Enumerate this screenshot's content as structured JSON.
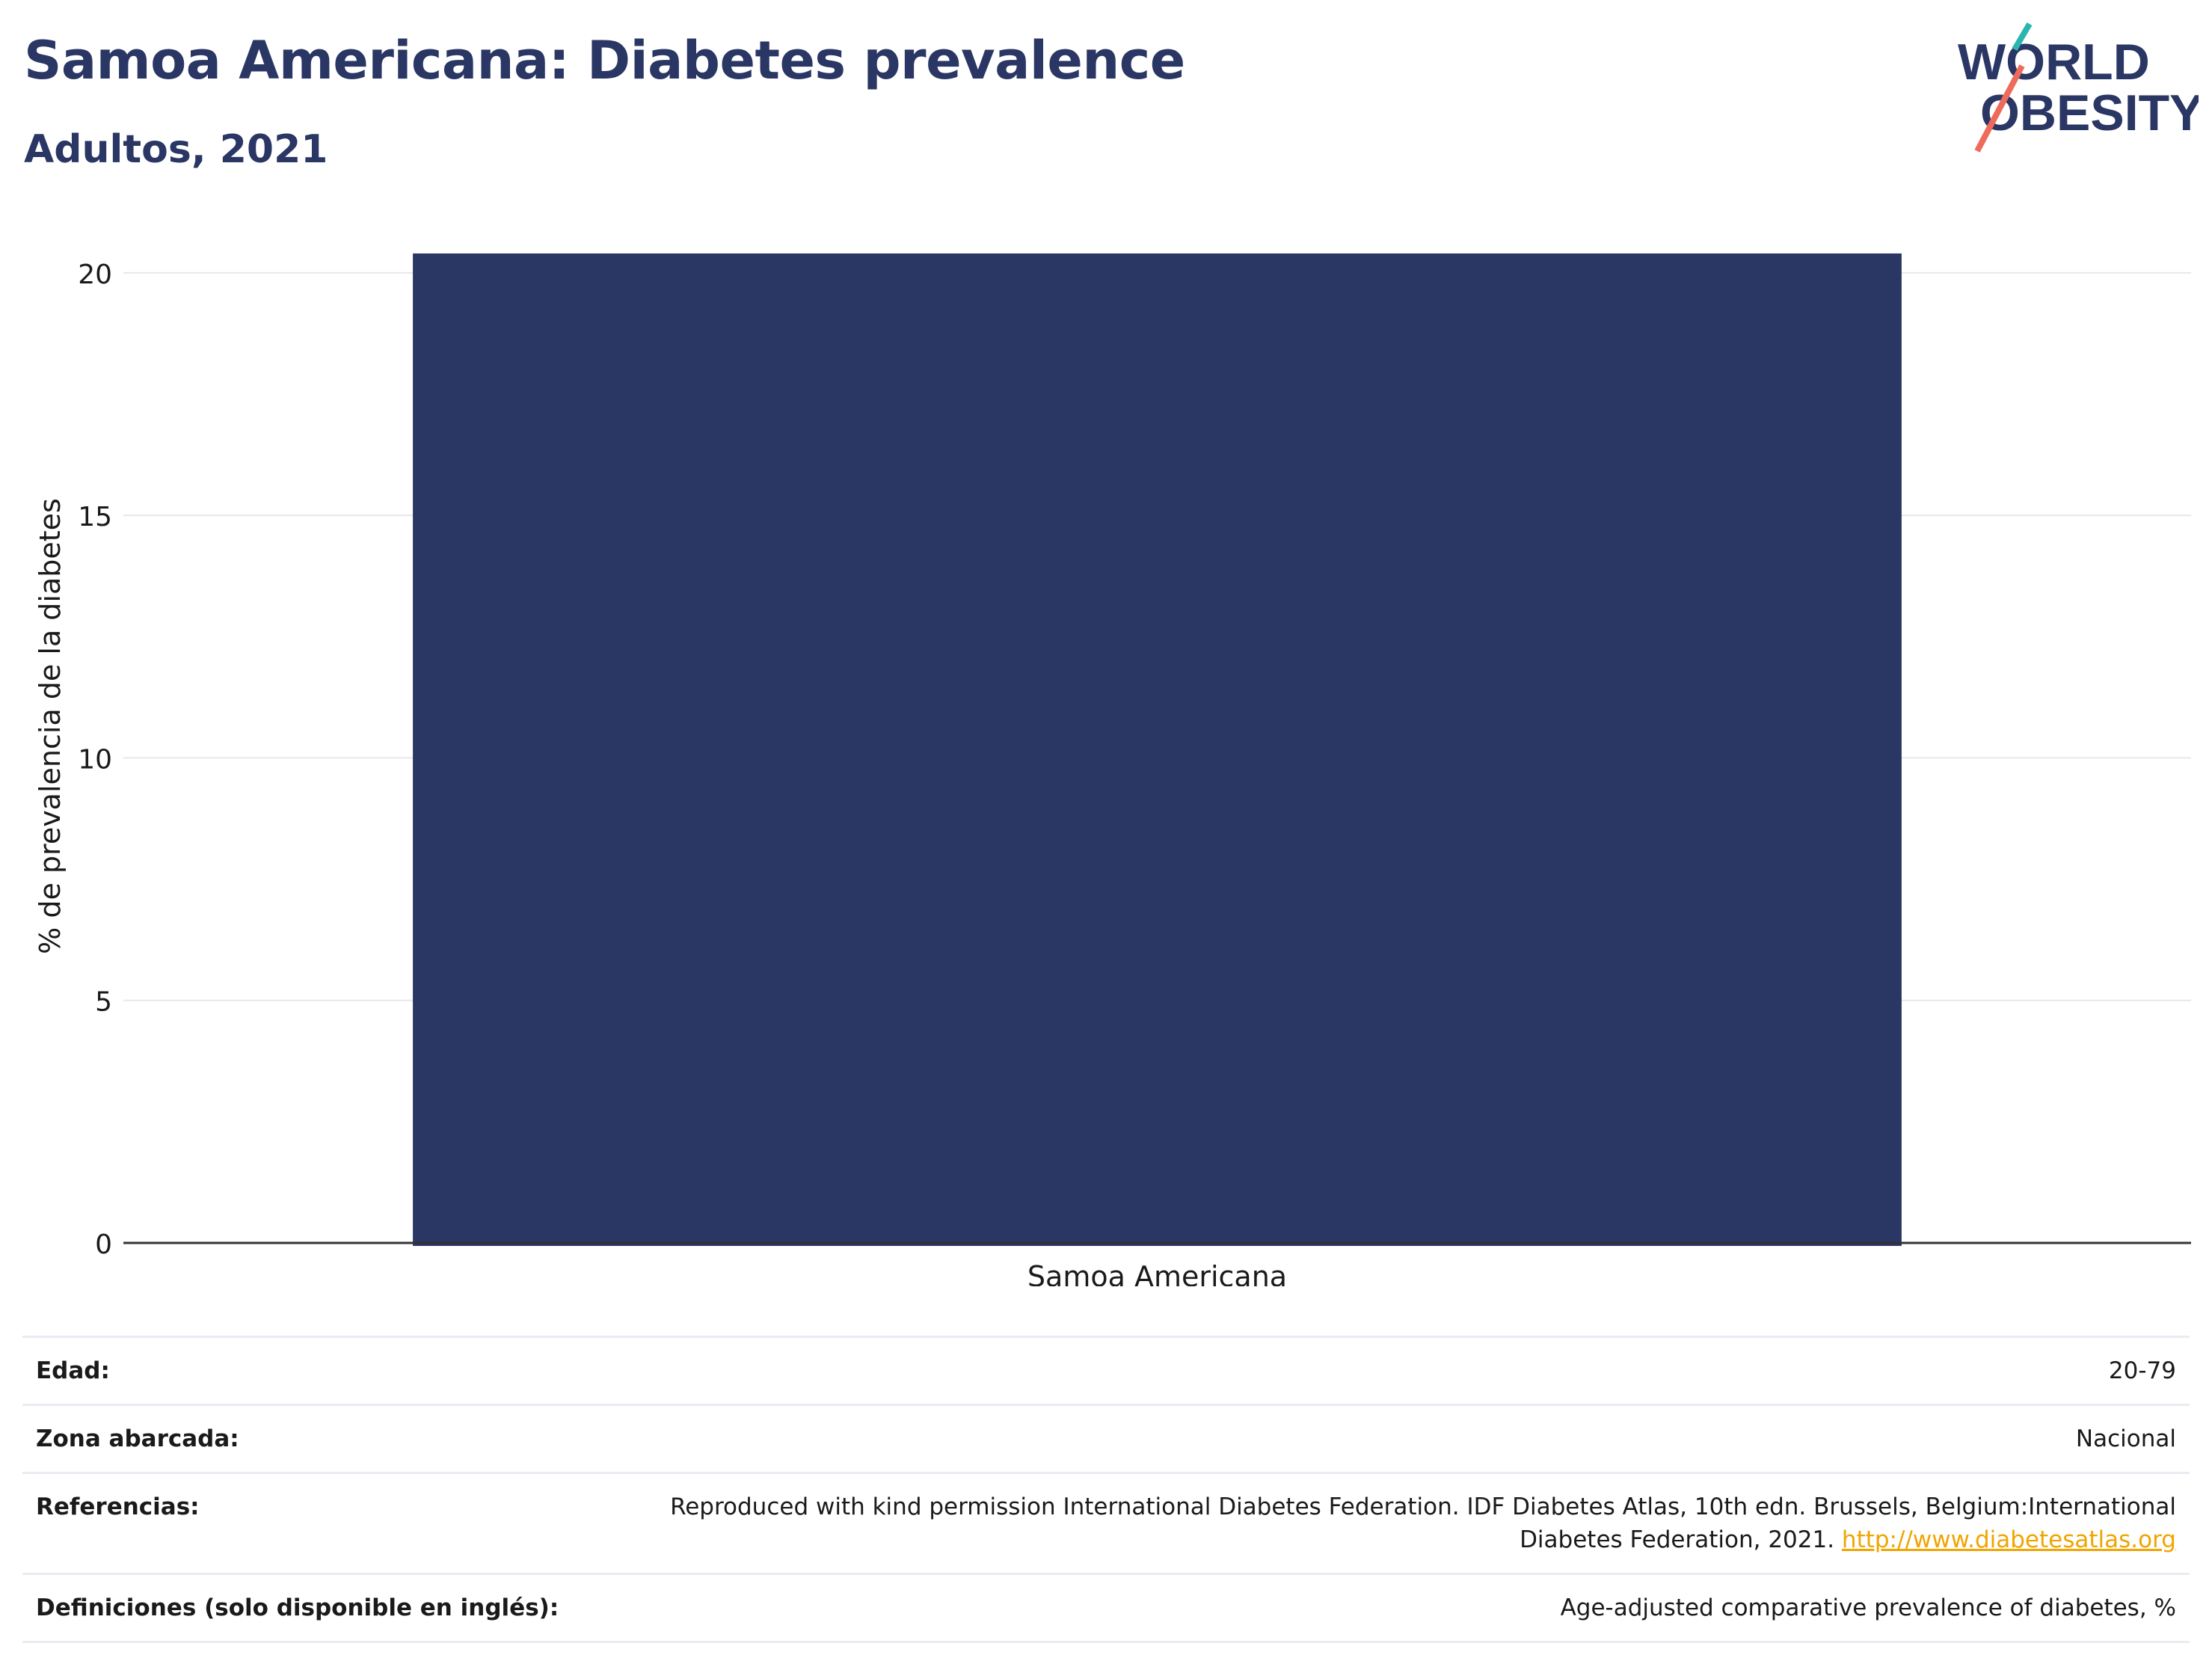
{
  "header": {
    "title": "Samoa Americana: Diabetes prevalence",
    "subtitle": "Adultos, 2021"
  },
  "logo": {
    "line1": "WORLD",
    "line2": "OBESITY"
  },
  "colors": {
    "bar": "#2a3663",
    "title": "#2a3663",
    "link": "#f0a500",
    "logo_teal": "#2ab5b0",
    "logo_coral": "#ee6b5b"
  },
  "chart_data": {
    "type": "bar",
    "categories": [
      "Samoa Americana"
    ],
    "values": [
      20.4
    ],
    "ylabel": "% de prevalencia de la diabetes",
    "xlabel": "",
    "ylim": [
      0,
      21
    ],
    "yticks": [
      0,
      5,
      10,
      15,
      20
    ],
    "grid": true,
    "legend": "none"
  },
  "meta": {
    "rows": [
      {
        "key": "Edad:",
        "value": "20-79"
      },
      {
        "key": "Zona abarcada:",
        "value": "Nacional"
      },
      {
        "key": "Referencias:",
        "value": "Reproduced with kind permission International Diabetes Federation.  IDF Diabetes Atlas, 10th edn. Brussels, Belgium:International Diabetes Federation, 2021. ",
        "link": "http://www.diabetesatlas.org"
      },
      {
        "key": "Definiciones (solo disponible en inglés):",
        "value": "Age-adjusted comparative prevalence of diabetes, %"
      }
    ]
  }
}
